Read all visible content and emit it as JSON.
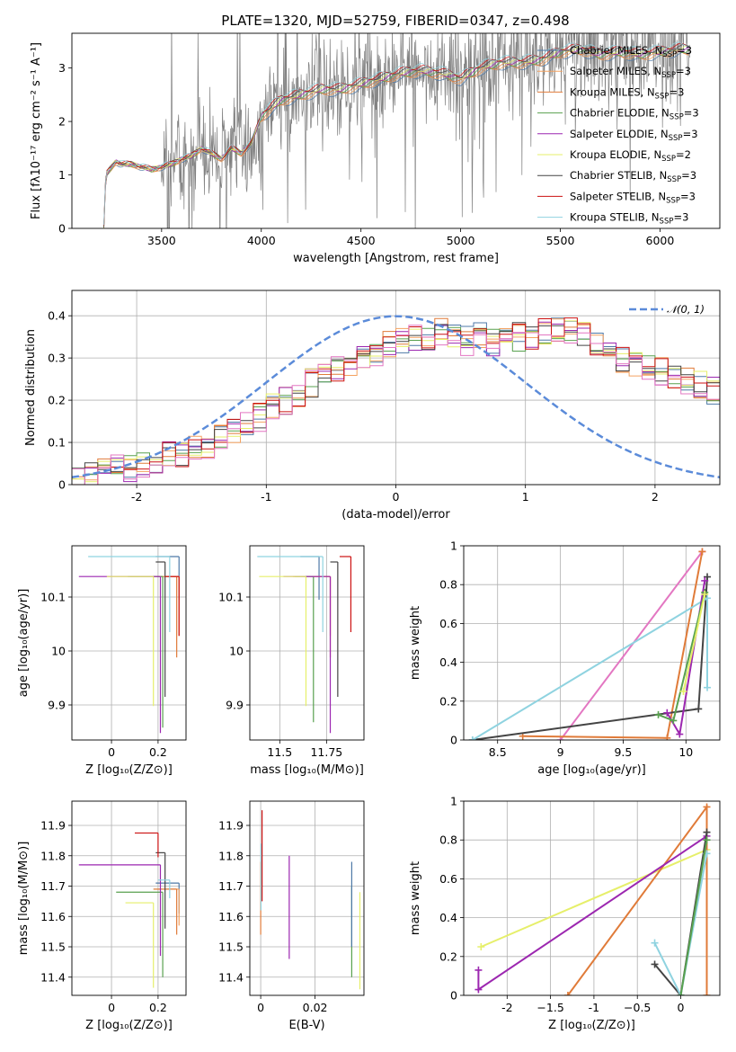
{
  "title": "PLATE=1320, MJD=52759, FIBERID=0347, z=0.498",
  "colors": {
    "chabrier_miles": "#4e79a7",
    "salpeter_miles": "#f4a261",
    "kroupa_miles": "#e07b39",
    "chabrier_elodie": "#59a14f",
    "salpeter_elodie": "#9c27b0",
    "kroupa_elodie": "#e6ef6a",
    "chabrier_stelib": "#444444",
    "salpeter_stelib": "#cc1111",
    "kroupa_stelib": "#8fd3e0",
    "hist_extra": "#e377c2",
    "normal": "#5b8bd9",
    "spectrum": "#808080"
  },
  "legend_spectrum": [
    {
      "label": "Chabrier MILES, N",
      "sub": "SSP",
      "suffix": "=3",
      "color": "#4e79a7"
    },
    {
      "label": "Salpeter MILES, N",
      "sub": "SSP",
      "suffix": "=3",
      "color": "#f4a261"
    },
    {
      "label": "Kroupa MILES, N",
      "sub": "SSP",
      "suffix": "=3",
      "color": "#e07b39"
    },
    {
      "label": "Chabrier ELODIE, N",
      "sub": "SSP",
      "suffix": "=3",
      "color": "#59a14f"
    },
    {
      "label": "Salpeter ELODIE, N",
      "sub": "SSP",
      "suffix": "=3",
      "color": "#9c27b0"
    },
    {
      "label": "Kroupa ELODIE, N",
      "sub": "SSP",
      "suffix": "=2",
      "color": "#e6ef6a"
    },
    {
      "label": "Chabrier STELIB, N",
      "sub": "SSP",
      "suffix": "=3",
      "color": "#444444"
    },
    {
      "label": "Salpeter STELIB, N",
      "sub": "SSP",
      "suffix": "=3",
      "color": "#cc1111"
    },
    {
      "label": "Kroupa STELIB, N",
      "sub": "SSP",
      "suffix": "=3",
      "color": "#8fd3e0"
    }
  ],
  "legend_hist": "𝒩(0, 1)",
  "chart_data": [
    {
      "id": "spectrum",
      "type": "line",
      "xlabel": "wavelength [Angstrom, rest frame]",
      "ylabel": "Flux [fλ10⁻¹⁷ erg cm⁻² s⁻¹ A⁻¹]",
      "xlim": [
        3050,
        6300
      ],
      "ylim": [
        0,
        3.65
      ],
      "xticks": [
        3500,
        4000,
        4500,
        5000,
        5500,
        6000
      ],
      "yticks": [
        0,
        1,
        2,
        3
      ],
      "data_x": [
        3210,
        3220,
        3240,
        3270,
        3300,
        3350,
        3400,
        3450,
        3500,
        3550,
        3600,
        3650,
        3700,
        3750,
        3800,
        3850,
        3900,
        3950,
        4000,
        4100,
        4200,
        4300,
        4400,
        4500,
        4600,
        4700,
        4800,
        4900,
        5000,
        5100,
        5200,
        5300,
        5400,
        5500,
        5600,
        5700,
        5800,
        5900,
        6000,
        6100,
        6150
      ],
      "model_y": [
        0.0,
        1.0,
        1.1,
        1.25,
        1.2,
        1.2,
        1.15,
        1.1,
        1.15,
        1.2,
        1.3,
        1.35,
        1.5,
        1.4,
        1.3,
        1.5,
        1.4,
        1.6,
        2.1,
        2.4,
        2.5,
        2.6,
        2.6,
        2.7,
        2.8,
        2.9,
        2.95,
        2.9,
        2.8,
        3.0,
        3.1,
        3.1,
        3.15,
        3.3,
        3.35,
        3.25,
        3.3,
        3.25,
        3.3,
        3.35,
        3.35
      ],
      "noise_start": 3500,
      "noise_end": 6150
    },
    {
      "id": "residuals",
      "type": "line",
      "xlabel": "(data-model)/error",
      "ylabel": "Normed distribution",
      "xlim": [
        -2.5,
        2.5
      ],
      "ylim": [
        0,
        0.46
      ],
      "xticks": [
        -2,
        -1,
        0,
        1,
        2
      ],
      "yticks": [
        0.0,
        0.1,
        0.2,
        0.3,
        0.4
      ],
      "bin_width": 0.1,
      "hist_base": [
        0.01,
        0.02,
        0.03,
        0.04,
        0.04,
        0.05,
        0.06,
        0.07,
        0.07,
        0.08,
        0.09,
        0.11,
        0.12,
        0.14,
        0.16,
        0.18,
        0.2,
        0.22,
        0.24,
        0.26,
        0.28,
        0.29,
        0.3,
        0.31,
        0.33,
        0.34,
        0.35,
        0.35,
        0.36,
        0.35,
        0.34,
        0.35,
        0.34,
        0.34,
        0.35,
        0.34,
        0.36,
        0.37,
        0.36,
        0.35,
        0.33,
        0.32,
        0.3,
        0.29,
        0.28,
        0.27,
        0.26,
        0.25,
        0.24,
        0.22,
        0.21,
        0.19,
        0.17,
        0.16,
        0.14,
        0.12,
        0.11,
        0.1,
        0.08,
        0.07
      ],
      "normal_mu": 0,
      "normal_sigma": 1
    },
    {
      "id": "age_vs_Z",
      "type": "scatter",
      "xlabel": "Z [log₁₀(Z/Z⊙)]",
      "ylabel": "age  [log₁₀(age/yr)]",
      "xlim": [
        -0.17,
        0.32
      ],
      "ylim": [
        9.835,
        10.195
      ],
      "xticks": [
        0.0,
        0.2
      ],
      "yticks": [
        9.9,
        10.0,
        10.1
      ],
      "points": [
        {
          "x": 0.29,
          "y": 10.175,
          "xl": 0.1,
          "yl": 0.08,
          "c": "chabrier_miles"
        },
        {
          "x": 0.29,
          "y": 10.138,
          "xl": 0.05,
          "yl": 0.11,
          "c": "salpeter_miles"
        },
        {
          "x": 0.28,
          "y": 10.138,
          "xl": 0.2,
          "yl": 0.15,
          "c": "kroupa_miles"
        },
        {
          "x": 0.22,
          "y": 10.138,
          "xl": 0.15,
          "yl": 0.28,
          "c": "chabrier_elodie"
        },
        {
          "x": 0.21,
          "y": 10.138,
          "xl": 0.35,
          "yl": 0.29,
          "c": "salpeter_elodie"
        },
        {
          "x": 0.18,
          "y": 10.138,
          "xl": 0.2,
          "yl": 0.24,
          "c": "kroupa_elodie"
        },
        {
          "x": 0.23,
          "y": 10.165,
          "xl": 0.04,
          "yl": 0.25,
          "c": "chabrier_stelib"
        },
        {
          "x": 0.29,
          "y": 10.138,
          "xl": 0.06,
          "yl": 0.11,
          "c": "salpeter_stelib"
        },
        {
          "x": 0.25,
          "y": 10.175,
          "xl": 0.35,
          "yl": 0.14,
          "c": "kroupa_stelib"
        }
      ]
    },
    {
      "id": "age_vs_mass",
      "type": "scatter",
      "xlabel": "mass [log₁₀(M/M⊙)]",
      "ylabel": "",
      "xlim": [
        11.34,
        11.95
      ],
      "ylim": [
        9.835,
        10.195
      ],
      "xticks": [
        11.5,
        11.75
      ],
      "yticks": [
        9.9,
        10.0,
        10.1
      ],
      "points": [
        {
          "x": 11.71,
          "y": 10.175,
          "xl": 0.1,
          "yl": 0.08,
          "c": "chabrier_miles"
        },
        {
          "x": 11.77,
          "y": 10.138,
          "xl": 0.1,
          "yl": 0.11,
          "c": "salpeter_miles"
        },
        {
          "x": 11.77,
          "y": 10.138,
          "xl": 0.2,
          "yl": 0.15,
          "c": "kroupa_miles"
        },
        {
          "x": 11.68,
          "y": 10.138,
          "xl": 0.1,
          "yl": 0.27,
          "c": "chabrier_elodie"
        },
        {
          "x": 11.77,
          "y": 10.138,
          "xl": 0.25,
          "yl": 0.29,
          "c": "salpeter_elodie"
        },
        {
          "x": 11.64,
          "y": 10.138,
          "xl": 0.25,
          "yl": 0.24,
          "c": "kroupa_elodie"
        },
        {
          "x": 11.81,
          "y": 10.165,
          "xl": 0.04,
          "yl": 0.25,
          "c": "chabrier_stelib"
        },
        {
          "x": 11.88,
          "y": 10.175,
          "xl": 0.06,
          "yl": 0.14,
          "c": "salpeter_stelib"
        },
        {
          "x": 11.73,
          "y": 10.175,
          "xl": 0.35,
          "yl": 0.14,
          "c": "kroupa_stelib"
        }
      ]
    },
    {
      "id": "weight_vs_age",
      "type": "line",
      "xlabel": "age  [log₁₀(age/yr)]",
      "ylabel": "mass weight",
      "xlim": [
        8.23,
        10.27
      ],
      "ylim": [
        0,
        1.0
      ],
      "xticks": [
        8.5,
        9.0,
        9.5,
        10.0
      ],
      "yticks": [
        0.0,
        0.2,
        0.4,
        0.6,
        0.8,
        1.0
      ],
      "series": [
        {
          "c": "hist_extra",
          "x": [
            9.0,
            10.13
          ],
          "y": [
            0.0,
            0.97
          ]
        },
        {
          "c": "kroupa_miles",
          "x": [
            8.7,
            9.85,
            10.13
          ],
          "y": [
            0.02,
            0.01,
            0.97
          ]
        },
        {
          "c": "chabrier_stelib",
          "x": [
            8.3,
            10.1,
            10.17
          ],
          "y": [
            0.0,
            0.16,
            0.84
          ]
        },
        {
          "c": "kroupa_stelib",
          "x": [
            8.3,
            10.17,
            10.17
          ],
          "y": [
            0.0,
            0.73,
            0.27
          ]
        },
        {
          "c": "salpeter_elodie",
          "x": [
            9.85,
            9.95,
            10.15
          ],
          "y": [
            0.14,
            0.03,
            0.82
          ]
        },
        {
          "c": "chabrier_elodie",
          "x": [
            9.78,
            9.9,
            10.15
          ],
          "y": [
            0.13,
            0.1,
            0.76
          ]
        },
        {
          "c": "kroupa_elodie",
          "x": [
            9.98,
            10.15
          ],
          "y": [
            0.25,
            0.75
          ]
        }
      ]
    },
    {
      "id": "mass_vs_Z",
      "type": "scatter",
      "xlabel": "Z [log₁₀(Z/Z⊙)]",
      "ylabel": "mass [log₁₀(M/M⊙)]",
      "xlim": [
        -0.17,
        0.32
      ],
      "ylim": [
        11.34,
        11.98
      ],
      "xticks": [
        0.0,
        0.2
      ],
      "yticks": [
        11.4,
        11.5,
        11.6,
        11.7,
        11.8,
        11.9
      ],
      "points": [
        {
          "x": 0.29,
          "y": 11.71,
          "xl": 0.1,
          "yl": 0.1,
          "c": "chabrier_miles"
        },
        {
          "x": 0.29,
          "y": 11.69,
          "xl": 0.05,
          "yl": 0.12,
          "c": "salpeter_miles"
        },
        {
          "x": 0.28,
          "y": 11.69,
          "xl": 0.1,
          "yl": 0.15,
          "c": "kroupa_miles"
        },
        {
          "x": 0.22,
          "y": 11.68,
          "xl": 0.2,
          "yl": 0.28,
          "c": "chabrier_elodie"
        },
        {
          "x": 0.21,
          "y": 11.77,
          "xl": 0.35,
          "yl": 0.3,
          "c": "salpeter_elodie"
        },
        {
          "x": 0.18,
          "y": 11.645,
          "xl": 0.12,
          "yl": 0.28,
          "c": "kroupa_elodie"
        },
        {
          "x": 0.23,
          "y": 11.81,
          "xl": 0.04,
          "yl": 0.25,
          "c": "chabrier_stelib"
        },
        {
          "x": 0.2,
          "y": 11.875,
          "xl": 0.1,
          "yl": 0.08,
          "c": "salpeter_stelib"
        },
        {
          "x": 0.25,
          "y": 11.72,
          "xl": 0.05,
          "yl": 0.06,
          "c": "kroupa_stelib"
        }
      ]
    },
    {
      "id": "mass_vs_ebv",
      "type": "scatter",
      "xlabel": "E(B-V)",
      "ylabel": "",
      "xlim": [
        -0.004,
        0.038
      ],
      "ylim": [
        11.34,
        11.98
      ],
      "xticks": [
        0.0,
        0.02
      ],
      "yticks": [
        11.4,
        11.5,
        11.6,
        11.7,
        11.8,
        11.9
      ],
      "points": [
        {
          "x": 0.0005,
          "y": 11.77,
          "yl": 0.12,
          "yh": 0.18,
          "c": "salpeter_stelib"
        },
        {
          "x": 0.0,
          "y": 11.68,
          "yl": 0.14,
          "yh": 0.1,
          "c": "kroupa_miles"
        },
        {
          "x": 0.0001,
          "y": 11.72,
          "yl": 0.1,
          "yh": 0.12,
          "c": "kroupa_stelib"
        },
        {
          "x": 0.0105,
          "y": 11.62,
          "yl": 0.16,
          "yh": 0.18,
          "c": "salpeter_elodie"
        },
        {
          "x": 0.0335,
          "y": 11.6,
          "yl": 0.2,
          "yh": 0.1,
          "c": "chabrier_elodie"
        },
        {
          "x": 0.0335,
          "y": 11.7,
          "yl": 0.2,
          "yh": 0.08,
          "c": "chabrier_miles"
        },
        {
          "x": 0.0365,
          "y": 11.55,
          "yl": 0.19,
          "yh": 0.13,
          "c": "kroupa_elodie"
        }
      ]
    },
    {
      "id": "weight_vs_Z",
      "type": "line",
      "xlabel": "Z [log₁₀(Z/Z⊙)]",
      "ylabel": "mass weight",
      "xlim": [
        -2.5,
        0.45
      ],
      "ylim": [
        0,
        1.0
      ],
      "xticks": [
        -2.0,
        -1.5,
        -1.0,
        -0.5,
        0.0
      ],
      "yticks": [
        0.0,
        0.2,
        0.4,
        0.6,
        0.8,
        1.0
      ],
      "series": [
        {
          "c": "kroupa_elodie",
          "x": [
            -2.3,
            0.3
          ],
          "y": [
            0.25,
            0.75
          ]
        },
        {
          "c": "kroupa_miles",
          "x": [
            -1.3,
            0.3,
            0.3
          ],
          "y": [
            0.0,
            0.97,
            0.0
          ]
        },
        {
          "c": "salpeter_elodie",
          "x": [
            -2.33,
            -2.33,
            0.3
          ],
          "y": [
            0.13,
            0.03,
            0.82
          ]
        },
        {
          "c": "chabrier_stelib",
          "x": [
            -0.3,
            0.0,
            0.3
          ],
          "y": [
            0.16,
            0.0,
            0.84
          ]
        },
        {
          "c": "kroupa_stelib",
          "x": [
            -0.3,
            0.0,
            0.3
          ],
          "y": [
            0.27,
            0.0,
            0.73
          ]
        },
        {
          "c": "chabrier_elodie",
          "x": [
            0.0,
            0.3
          ],
          "y": [
            0.0,
            0.8
          ]
        }
      ]
    }
  ]
}
